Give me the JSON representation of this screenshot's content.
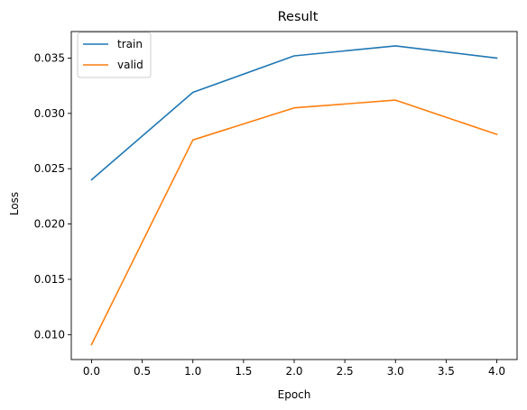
{
  "chart_data": {
    "type": "line",
    "title": "Result",
    "xlabel": "Epoch",
    "ylabel": "Loss",
    "x": [
      0,
      1,
      2,
      3,
      4
    ],
    "series": [
      {
        "name": "train",
        "color": "#1f77b4",
        "values": [
          0.024,
          0.0319,
          0.0352,
          0.0361,
          0.035
        ]
      },
      {
        "name": "valid",
        "color": "#ff7f0e",
        "values": [
          0.0091,
          0.0276,
          0.0305,
          0.0312,
          0.0281
        ]
      }
    ],
    "xlim": [
      -0.2,
      4.2
    ],
    "ylim": [
      0.00775,
      0.0374
    ],
    "xticks": [
      0.0,
      0.5,
      1.0,
      1.5,
      2.0,
      2.5,
      3.0,
      3.5,
      4.0
    ],
    "xtick_labels": [
      "0.0",
      "0.5",
      "1.0",
      "1.5",
      "2.0",
      "2.5",
      "3.0",
      "3.5",
      "4.0"
    ],
    "yticks": [
      0.01,
      0.015,
      0.02,
      0.025,
      0.03,
      0.035
    ],
    "ytick_labels": [
      "0.010",
      "0.015",
      "0.020",
      "0.025",
      "0.030",
      "0.035"
    ],
    "grid": false,
    "legend_position": "top-left"
  }
}
